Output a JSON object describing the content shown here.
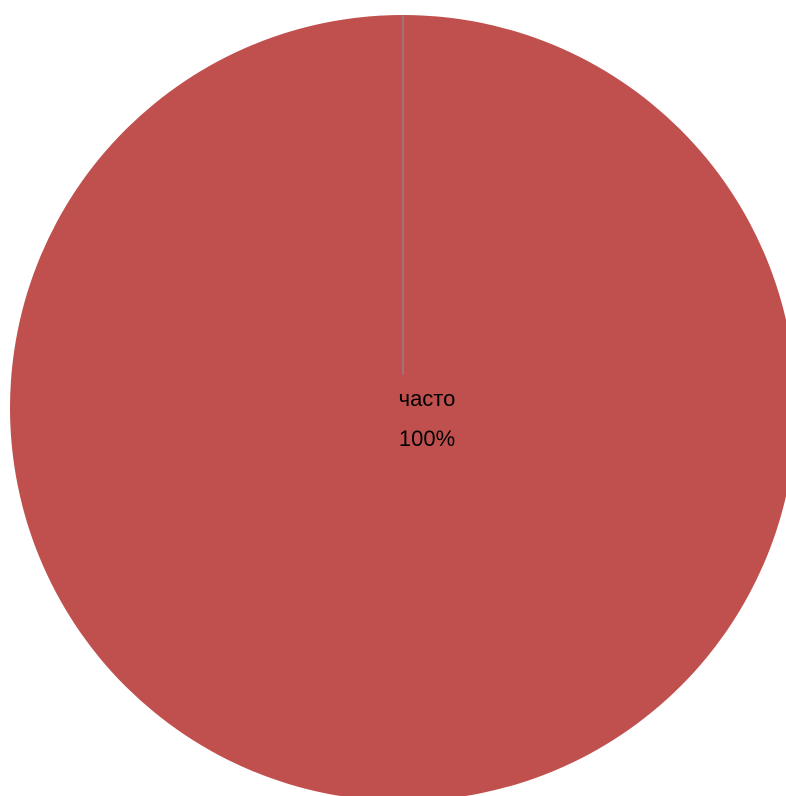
{
  "chart_data": {
    "type": "pie",
    "categories": [
      "часто"
    ],
    "values": [
      100
    ],
    "value_labels": [
      "100%"
    ],
    "colors": [
      "#c0504d"
    ]
  }
}
